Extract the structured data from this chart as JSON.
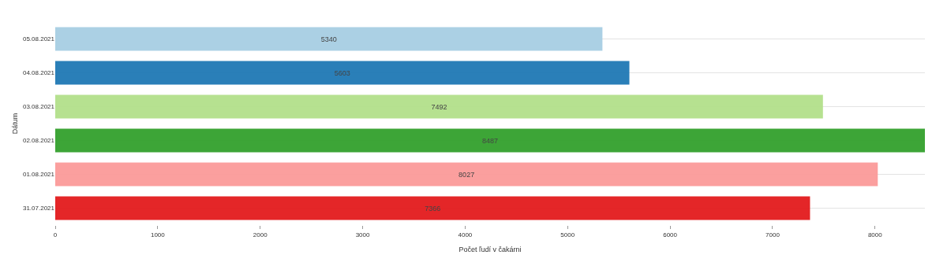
{
  "chart_data": {
    "type": "bar",
    "orientation": "horizontal",
    "xlabel": "Počet ľudí v čakárni",
    "ylabel": "Dátum",
    "categories": [
      "05.08.2021",
      "04.08.2021",
      "03.08.2021",
      "02.08.2021",
      "01.08.2021",
      "31.07.2021"
    ],
    "values": [
      5340,
      5603,
      7492,
      8487,
      8027,
      7366
    ],
    "colors": [
      "#a6cee3",
      "#1f78b4",
      "#b2df8a",
      "#33a02c",
      "#fb9a99",
      "#e31a1c"
    ],
    "xlim": [
      0,
      8487
    ],
    "xticks": [
      0,
      1000,
      2000,
      3000,
      4000,
      5000,
      6000,
      7000,
      8000
    ],
    "grid": "y",
    "data_labels": true
  }
}
